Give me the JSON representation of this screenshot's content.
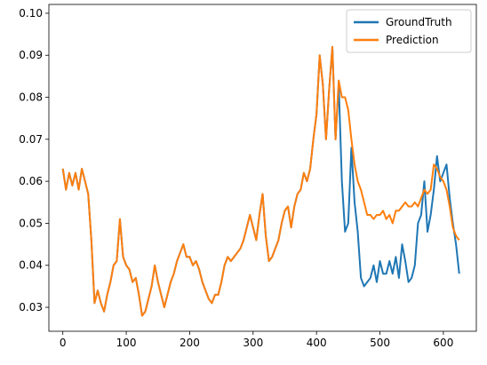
{
  "chart_data": {
    "type": "line",
    "x": [
      0,
      5,
      10,
      15,
      20,
      25,
      30,
      35,
      40,
      45,
      50,
      55,
      60,
      65,
      70,
      75,
      80,
      85,
      90,
      95,
      100,
      105,
      110,
      115,
      120,
      125,
      130,
      135,
      140,
      145,
      150,
      155,
      160,
      165,
      170,
      175,
      180,
      185,
      190,
      195,
      200,
      205,
      210,
      215,
      220,
      225,
      230,
      235,
      240,
      245,
      250,
      255,
      260,
      265,
      270,
      275,
      280,
      285,
      290,
      295,
      300,
      305,
      310,
      315,
      320,
      325,
      330,
      335,
      340,
      345,
      350,
      355,
      360,
      365,
      370,
      375,
      380,
      385,
      390,
      395,
      400,
      405,
      410,
      415,
      420,
      425,
      430,
      435,
      440,
      445,
      450,
      455,
      460,
      465,
      470,
      475,
      480,
      485,
      490,
      495,
      500,
      505,
      510,
      515,
      520,
      525,
      530,
      535,
      540,
      545,
      550,
      555,
      560,
      565,
      570,
      575,
      580,
      585,
      590,
      595,
      600,
      605,
      610,
      615,
      620,
      625
    ],
    "series": [
      {
        "name": "GroundTruth",
        "color": "#1f77b4",
        "values": [
          0.063,
          0.058,
          0.062,
          0.059,
          0.062,
          0.058,
          0.063,
          0.06,
          0.057,
          0.046,
          0.031,
          0.034,
          0.031,
          0.029,
          0.033,
          0.036,
          0.04,
          0.041,
          0.051,
          0.042,
          0.04,
          0.039,
          0.036,
          0.037,
          0.033,
          0.028,
          0.029,
          0.032,
          0.035,
          0.04,
          0.036,
          0.033,
          0.03,
          0.033,
          0.036,
          0.038,
          0.041,
          0.043,
          0.045,
          0.042,
          0.042,
          0.04,
          0.041,
          0.039,
          0.036,
          0.034,
          0.032,
          0.031,
          0.033,
          0.033,
          0.036,
          0.04,
          0.042,
          0.041,
          0.042,
          0.043,
          0.044,
          0.046,
          0.049,
          0.052,
          0.049,
          0.046,
          0.052,
          0.057,
          0.047,
          0.041,
          0.042,
          0.044,
          0.046,
          0.05,
          0.053,
          0.054,
          0.049,
          0.054,
          0.057,
          0.058,
          0.062,
          0.06,
          0.063,
          0.07,
          0.076,
          0.09,
          0.083,
          0.07,
          0.082,
          0.092,
          0.07,
          0.083,
          0.06,
          0.048,
          0.05,
          0.068,
          0.055,
          0.048,
          0.037,
          0.035,
          0.036,
          0.037,
          0.04,
          0.036,
          0.041,
          0.038,
          0.038,
          0.041,
          0.038,
          0.042,
          0.037,
          0.045,
          0.041,
          0.036,
          0.037,
          0.04,
          0.05,
          0.052,
          0.06,
          0.048,
          0.052,
          0.058,
          0.066,
          0.06,
          0.062,
          0.064,
          0.056,
          0.05,
          0.045,
          0.038
        ]
      },
      {
        "name": "Prediction",
        "color": "#ff7f0e",
        "values": [
          0.063,
          0.058,
          0.062,
          0.059,
          0.062,
          0.058,
          0.063,
          0.06,
          0.057,
          0.046,
          0.031,
          0.034,
          0.031,
          0.029,
          0.033,
          0.036,
          0.04,
          0.041,
          0.051,
          0.042,
          0.04,
          0.039,
          0.036,
          0.037,
          0.033,
          0.028,
          0.029,
          0.032,
          0.035,
          0.04,
          0.036,
          0.033,
          0.03,
          0.033,
          0.036,
          0.038,
          0.041,
          0.043,
          0.045,
          0.042,
          0.042,
          0.04,
          0.041,
          0.039,
          0.036,
          0.034,
          0.032,
          0.031,
          0.033,
          0.033,
          0.036,
          0.04,
          0.042,
          0.041,
          0.042,
          0.043,
          0.044,
          0.046,
          0.049,
          0.052,
          0.049,
          0.046,
          0.052,
          0.057,
          0.047,
          0.041,
          0.042,
          0.044,
          0.046,
          0.05,
          0.053,
          0.054,
          0.049,
          0.054,
          0.057,
          0.058,
          0.062,
          0.06,
          0.063,
          0.07,
          0.076,
          0.09,
          0.083,
          0.07,
          0.082,
          0.092,
          0.07,
          0.084,
          0.08,
          0.08,
          0.077,
          0.07,
          0.064,
          0.06,
          0.058,
          0.055,
          0.052,
          0.052,
          0.051,
          0.052,
          0.052,
          0.053,
          0.051,
          0.052,
          0.05,
          0.053,
          0.053,
          0.054,
          0.055,
          0.054,
          0.054,
          0.055,
          0.054,
          0.056,
          0.058,
          0.057,
          0.058,
          0.064,
          0.063,
          0.061,
          0.06,
          0.058,
          0.054,
          0.049,
          0.047,
          0.046
        ]
      }
    ],
    "xlim": [
      -22,
      652
    ],
    "xticks": [
      0,
      100,
      200,
      300,
      400,
      500,
      600
    ],
    "ylim": [
      0.0243,
      0.1021
    ],
    "yticks": [
      0.03,
      0.04,
      0.05,
      0.06,
      0.07,
      0.08,
      0.09,
      {
        "value": 0.1,
        "label": "0.10"
      }
    ],
    "legend": "upper right"
  }
}
